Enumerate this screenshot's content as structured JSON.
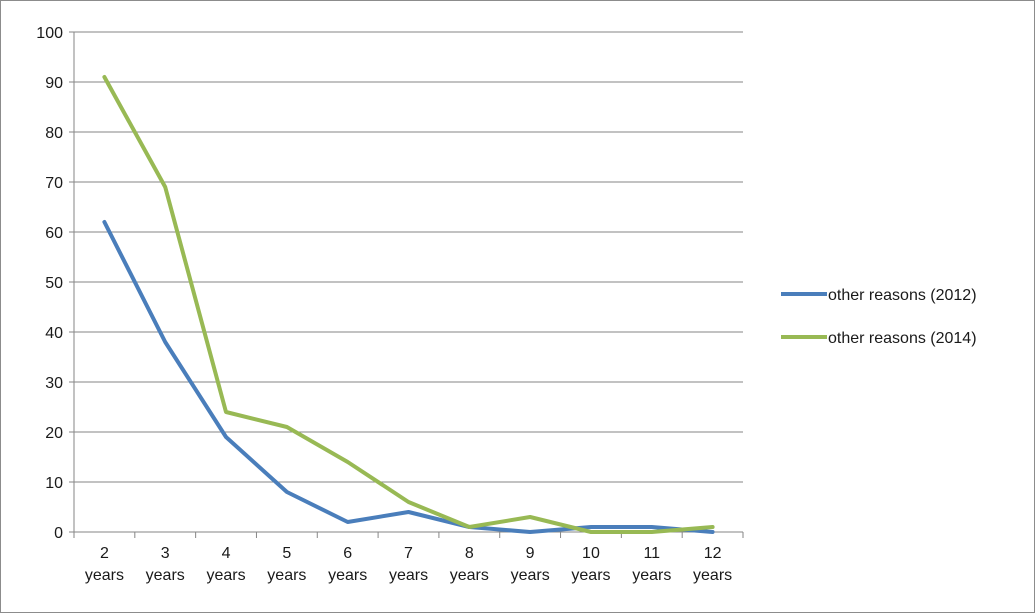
{
  "chart_data": {
    "type": "line",
    "title": "",
    "xlabel": "",
    "ylabel": "",
    "categories": [
      "2 years",
      "3 years",
      "4 years",
      "5 years",
      "6 years",
      "7 years",
      "8 years",
      "9 years",
      "10 years",
      "11 years",
      "12 years"
    ],
    "category_lines": [
      [
        "2",
        "years"
      ],
      [
        "3",
        "years"
      ],
      [
        "4",
        "years"
      ],
      [
        "5",
        "years"
      ],
      [
        "6",
        "years"
      ],
      [
        "7",
        "years"
      ],
      [
        "8",
        "years"
      ],
      [
        "9",
        "years"
      ],
      [
        "10",
        "years"
      ],
      [
        "11",
        "years"
      ],
      [
        "12",
        "years"
      ]
    ],
    "ylim": [
      0,
      100
    ],
    "yticks": [
      0,
      10,
      20,
      30,
      40,
      50,
      60,
      70,
      80,
      90,
      100
    ],
    "grid": true,
    "legend_position": "right",
    "series": [
      {
        "name": "other reasons (2012)",
        "color": "#4a7ebb",
        "values": [
          62,
          38,
          19,
          8,
          2,
          4,
          1,
          0,
          1,
          1,
          0
        ]
      },
      {
        "name": "other reasons (2014)",
        "color": "#98b954",
        "values": [
          91,
          69,
          24,
          21,
          14,
          6,
          1,
          3,
          0,
          0,
          1
        ]
      }
    ]
  }
}
